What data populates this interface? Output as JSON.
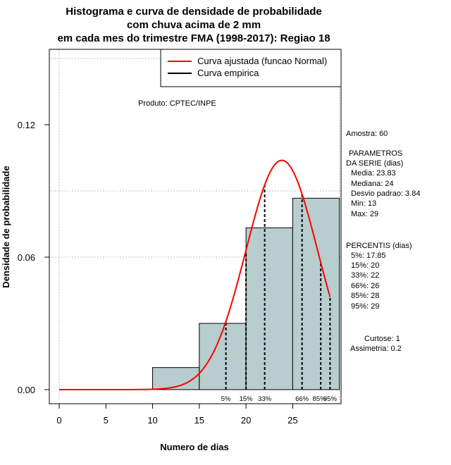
{
  "chart_data": {
    "type": "bar",
    "title": [
      "Histograma e curva de densidade de probabilidade",
      "com chuva acima de 2 mm",
      "em cada mes do trimestre FMA (1998-2017): Regiao 18"
    ],
    "xlabel": "Numero de dias",
    "ylabel": "Densidade de probabilidade",
    "xlim": [
      0,
      30
    ],
    "ylim": [
      0,
      0.15
    ],
    "xticks": [
      "0",
      "5",
      "10",
      "15",
      "20",
      "25"
    ],
    "xtick_values": [
      0,
      5,
      10,
      15,
      20,
      25
    ],
    "yticks": [
      "0.00",
      "0.06",
      "0.12"
    ],
    "ytick_values": [
      0,
      0.06,
      0.12
    ],
    "bins": [
      {
        "start": 10,
        "end": 15,
        "density": 0.01
      },
      {
        "start": 15,
        "end": 20,
        "density": 0.03
      },
      {
        "start": 20,
        "end": 25,
        "density": 0.0733
      },
      {
        "start": 25,
        "end": 30,
        "density": 0.0867
      }
    ],
    "bar_color": "#b8cece",
    "curve": {
      "name": "Curva ajustada (funcao Normal)",
      "mean": 23.83,
      "sd": 3.84,
      "from": 0,
      "to": 29,
      "color": "#ff0000"
    },
    "percentile_lines": [
      {
        "label": "5%",
        "x": 17.85
      },
      {
        "label": "15%",
        "x": 20
      },
      {
        "label": "33%",
        "x": 22
      },
      {
        "label": "66%",
        "x": 26
      },
      {
        "label": "85%",
        "x": 28
      },
      {
        "label": "95%",
        "x": 29
      }
    ],
    "legend": [
      {
        "label": "Curva ajustada (funcao Normal)",
        "color": "#ff0000"
      },
      {
        "label": "Curva empirica",
        "color": "#000000"
      }
    ],
    "gridlines_y": [
      0.06,
      0.09,
      0.15
    ],
    "gridlines_x": [
      0,
      30
    ]
  },
  "annotations": {
    "produto": "Produto: CPTEC/INPE",
    "amostra": "Amostra: 60",
    "parametros_title_1": "PARAMETROS",
    "parametros_title_2": "DA SERIE (dias)",
    "media": "Media: 23.83",
    "mediana": "Mediana: 24",
    "desvio": "Desvio padrao: 3.84",
    "min": "Min: 13",
    "max": "Max: 29",
    "percentis_title": "PERCENTIS (dias)",
    "p5": "5%: 17.85",
    "p15": "15%: 20",
    "p33": "33%: 22",
    "p66": "66%: 26",
    "p85": "85%: 28",
    "p95": "95%: 29",
    "curtose": "Curtose: 1",
    "assimetria": "Assimetria: 0.2"
  }
}
